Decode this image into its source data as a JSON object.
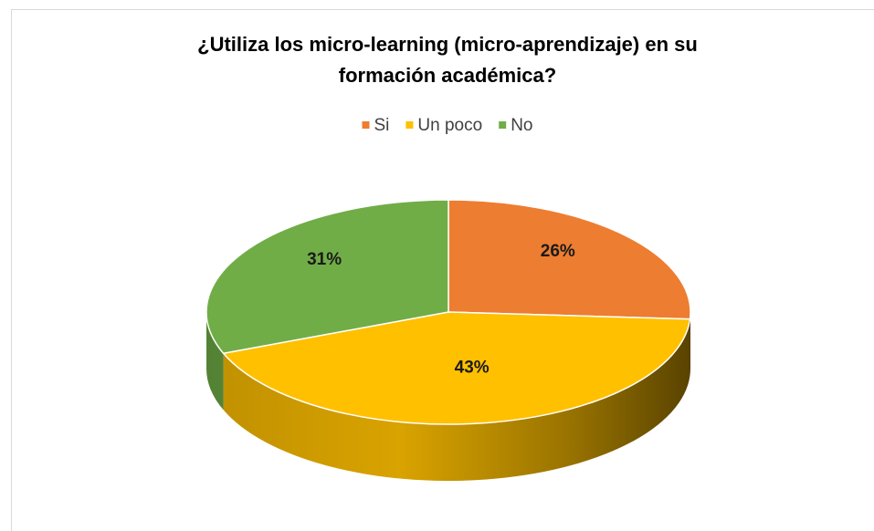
{
  "chart_data": {
    "type": "pie",
    "title": "¿Utiliza los micro-learning (micro-aprendizaje) en su formación académica?",
    "categories": [
      "Si",
      "Un poco",
      "No"
    ],
    "values": [
      26,
      43,
      31
    ],
    "value_labels": [
      "26%",
      "43%",
      "31%"
    ],
    "colors": [
      "#ED7D31",
      "#FFC000",
      "#70AD47"
    ],
    "legend": "top"
  }
}
